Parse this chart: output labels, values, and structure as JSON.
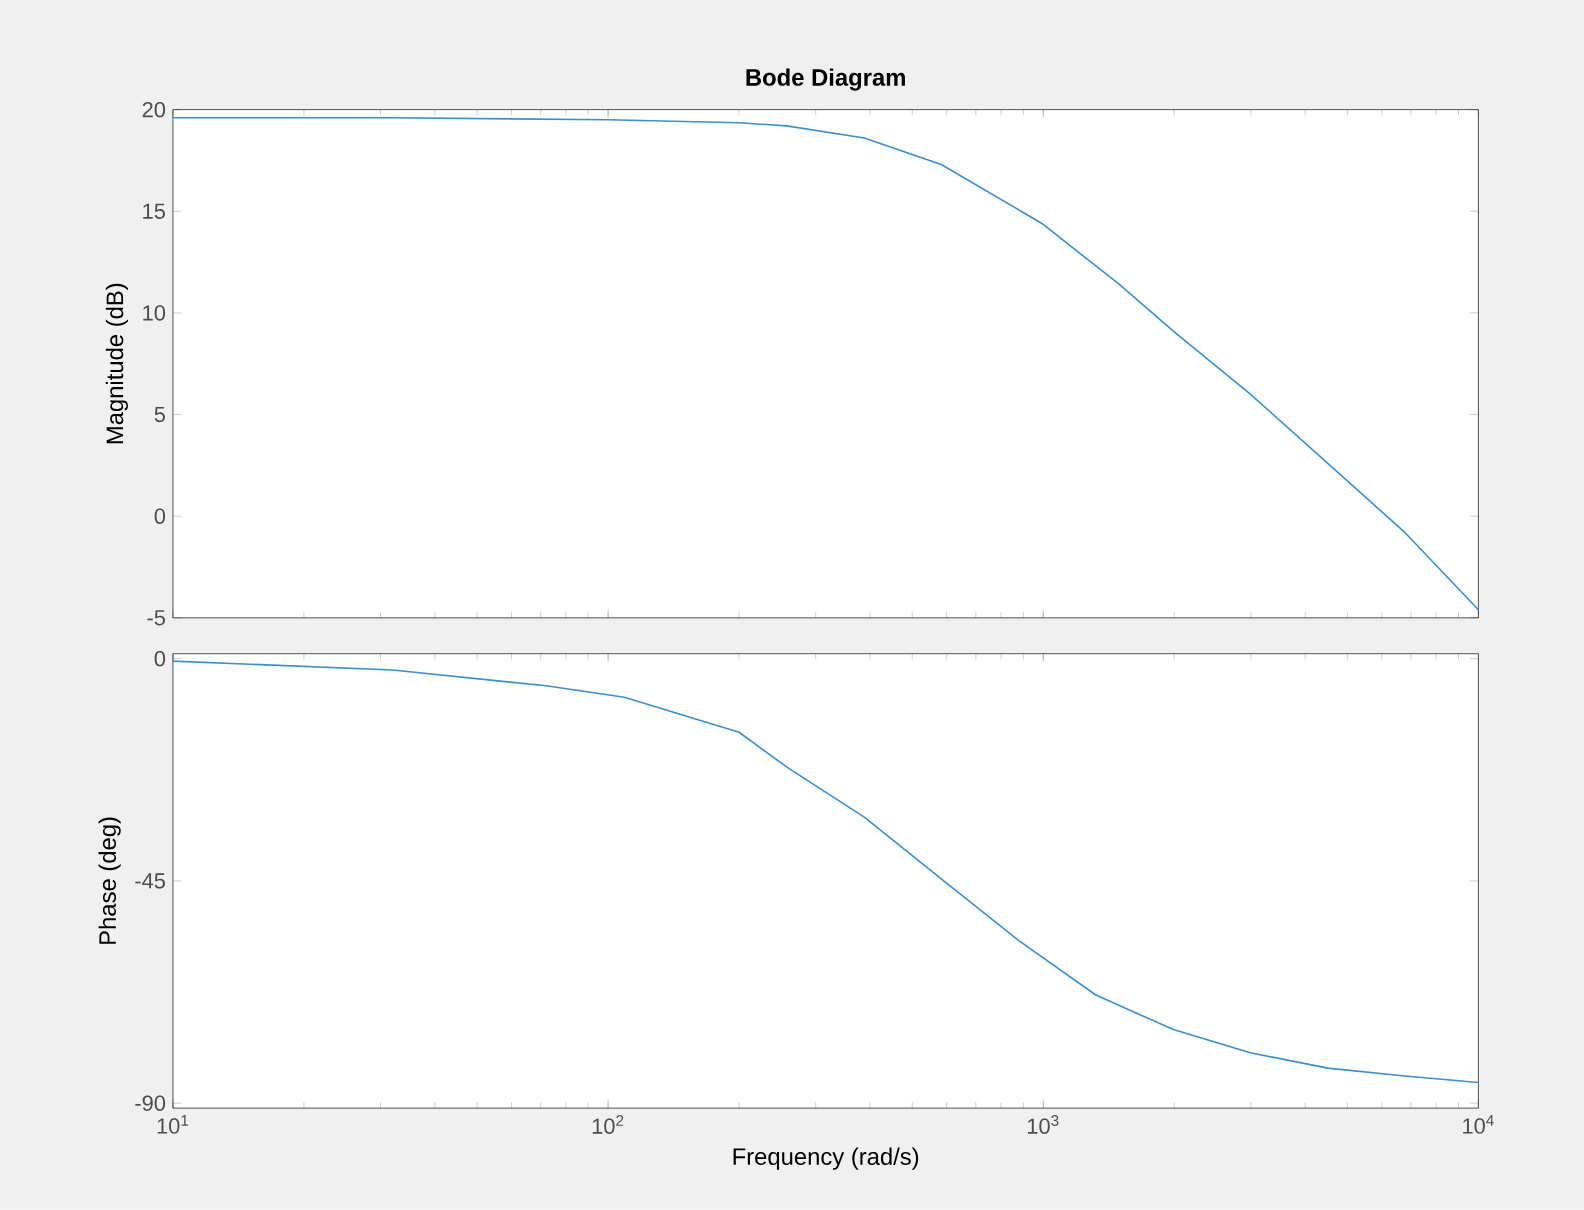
{
  "chart_data": [
    {
      "type": "line",
      "title": "Bode Diagram",
      "ylabel": "Magnitude (dB)",
      "log": "x",
      "tick_labels": "y",
      "grid": false,
      "xlim": [
        10,
        10000
      ],
      "ylim": [
        -5,
        20
      ],
      "xticks": [
        {
          "value": 10,
          "label": null
        },
        {
          "value": 100,
          "label": null
        },
        {
          "value": 1000,
          "label": null
        },
        {
          "value": 10000,
          "label": null
        }
      ],
      "yticks": [
        -5,
        0,
        5,
        10,
        15,
        20
      ],
      "series": [
        {
          "color": "#3a8fd0",
          "x": [
            10,
            32,
            100,
            200,
            257,
            388,
            583,
            993,
            1496,
            1991,
            2992,
            4508,
            6776,
            10000
          ],
          "values": [
            19.6,
            19.6,
            19.5,
            19.35,
            19.2,
            18.6,
            17.3,
            14.4,
            11.4,
            9.1,
            6.0,
            2.6,
            -0.8,
            -4.6
          ]
        }
      ]
    },
    {
      "type": "line",
      "xlabel": "Frequency  (rad/s)",
      "ylabel": "Phase (deg)",
      "log": "x",
      "grid": false,
      "xlim": [
        10,
        10000
      ],
      "ylim": [
        -91,
        1
      ],
      "xticks": [
        {
          "value": 10,
          "label": "10$^{1}$"
        },
        {
          "value": 100,
          "label": "10$^{2}$"
        },
        {
          "value": 1000,
          "label": "10$^{3}$"
        },
        {
          "value": 10000,
          "label": "10$^{4}$"
        }
      ],
      "yticks": [
        -90,
        -45,
        0
      ],
      "series": [
        {
          "color": "#3a8fd0",
          "x": [
            10,
            32,
            72,
            109,
            200,
            257,
            388,
            583,
            879,
            1321,
            1991,
            2992,
            4508,
            6776,
            10000
          ],
          "values": [
            -0.5,
            -2.3,
            -5.5,
            -7.8,
            -14.9,
            -21.9,
            -32.1,
            -44.6,
            -57.1,
            -68.1,
            -75.1,
            -79.8,
            -82.9,
            -84.5,
            -85.8
          ]
        }
      ]
    }
  ]
}
